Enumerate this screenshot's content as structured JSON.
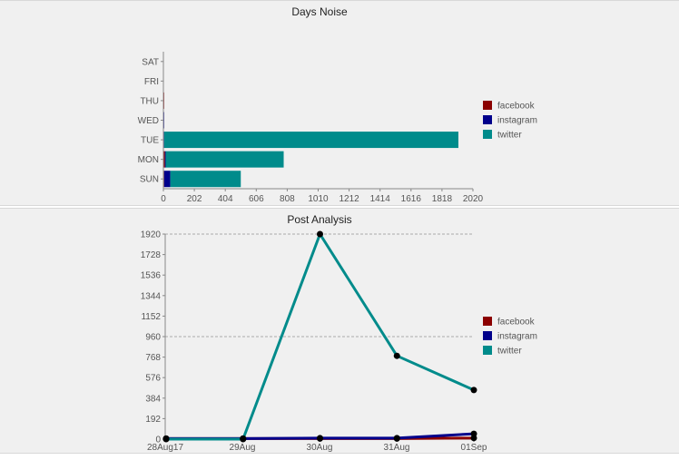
{
  "chart_data": [
    {
      "type": "bar",
      "orientation": "horizontal",
      "stacked": true,
      "title": "Days Noise",
      "categories": [
        "SAT",
        "FRI",
        "THU",
        "WED",
        "TUE",
        "MON",
        "SUN"
      ],
      "series": [
        {
          "name": "facebook",
          "color": "#8b0000",
          "values": [
            0,
            0,
            5,
            0,
            0,
            10,
            5
          ]
        },
        {
          "name": "instagram",
          "color": "#00008b",
          "values": [
            0,
            0,
            0,
            5,
            5,
            5,
            40
          ]
        },
        {
          "name": "twitter",
          "color": "#008b8b",
          "values": [
            0,
            0,
            0,
            0,
            1920,
            770,
            460
          ]
        }
      ],
      "xticks": [
        0,
        202,
        404,
        606,
        808,
        1010,
        1212,
        1414,
        1616,
        1818,
        2020
      ],
      "xlim": [
        0,
        2020
      ],
      "legend": "right"
    },
    {
      "type": "line",
      "title": "Post Analysis",
      "x": [
        "28Aug17",
        "29Aug",
        "30Aug",
        "31Aug",
        "01Sep"
      ],
      "x_ticks": [
        "28Aug17",
        "29Aug",
        "30Aug",
        "31Aug",
        "01Sep"
      ],
      "series": [
        {
          "name": "facebook",
          "color": "#8b0000",
          "values": [
            5,
            5,
            5,
            5,
            10
          ]
        },
        {
          "name": "instagram",
          "color": "#00008b",
          "values": [
            5,
            5,
            10,
            10,
            50
          ]
        },
        {
          "name": "twitter",
          "color": "#008b8b",
          "values": [
            0,
            0,
            1920,
            780,
            460
          ]
        }
      ],
      "yticks": [
        0,
        192,
        384,
        576,
        768,
        960,
        1152,
        1344,
        1536,
        1728,
        1920
      ],
      "ylim": [
        0,
        1920
      ],
      "gridlines": [
        960,
        1920
      ],
      "legend": "right"
    }
  ]
}
